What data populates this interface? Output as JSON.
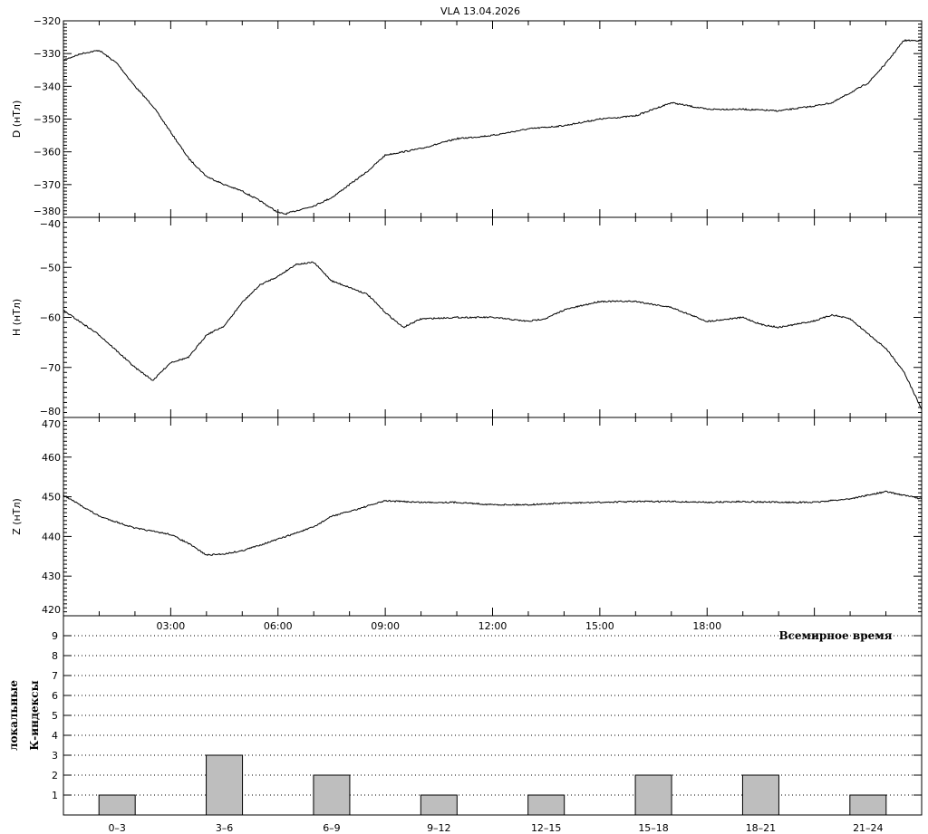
{
  "title": "VLA   13.04.2026",
  "chart_data": [
    {
      "type": "line",
      "ylabel": "D (нТл)",
      "ylim": [
        -380,
        -320
      ],
      "yticks": [
        -320,
        -330,
        -340,
        -350,
        -360,
        -370,
        -380
      ],
      "xlim": [
        0,
        24
      ],
      "x": [
        0,
        0.5,
        1,
        1.5,
        2,
        2.5,
        3,
        3.5,
        4,
        4.5,
        5,
        5.5,
        6,
        6.2,
        6.5,
        7,
        7.5,
        8,
        8.5,
        9,
        9.5,
        10,
        11,
        12,
        13,
        14,
        15,
        16,
        17,
        18,
        19,
        20,
        21,
        21.5,
        22,
        22.5,
        23,
        23.5,
        24
      ],
      "y": [
        -332,
        -330,
        -329,
        -333,
        -340,
        -346,
        -354,
        -362,
        -367.5,
        -370,
        -372,
        -375,
        -378.5,
        -379,
        -378,
        -376.5,
        -374,
        -370,
        -366,
        -361,
        -360,
        -359,
        -356,
        -355,
        -353,
        -352,
        -350,
        -349,
        -345,
        -347,
        -347,
        -347.5,
        -346,
        -345,
        -342,
        -339,
        -333,
        -326,
        -326
      ]
    },
    {
      "type": "line",
      "ylabel": "H (нТл)",
      "ylim": [
        -80,
        -40
      ],
      "yticks": [
        -40,
        -50,
        -60,
        -70,
        -80
      ],
      "xlim": [
        0,
        24
      ],
      "x": [
        0,
        1,
        2,
        2.5,
        3,
        3.5,
        4,
        4.5,
        5,
        5.5,
        6,
        6.5,
        7,
        7.5,
        8,
        8.5,
        9,
        9.5,
        10,
        11,
        12,
        12.5,
        13,
        13.5,
        14,
        15,
        16,
        17,
        18,
        19,
        19.5,
        20,
        21,
        21.5,
        22,
        23,
        23.5,
        24
      ],
      "y": [
        -58.6,
        -63.5,
        -70,
        -72.6,
        -69,
        -68,
        -63.5,
        -61.7,
        -57,
        -53.5,
        -51.8,
        -49.4,
        -49,
        -52.7,
        -54,
        -55.4,
        -59,
        -62,
        -60.3,
        -60,
        -60,
        -60.4,
        -60.8,
        -60.2,
        -58.5,
        -56.8,
        -56.8,
        -58,
        -60.8,
        -60,
        -61.4,
        -62,
        -60.7,
        -59.5,
        -60.3,
        -66.2,
        -70.8,
        -78.4
      ]
    },
    {
      "type": "line",
      "ylabel": "Z (нТл)",
      "ylim": [
        420,
        470
      ],
      "yticks": [
        470,
        460,
        450,
        440,
        430,
        420
      ],
      "xlim": [
        0,
        24
      ],
      "x": [
        0,
        1,
        2,
        3,
        3.5,
        4,
        4.5,
        5,
        6,
        7,
        7.5,
        8,
        9,
        10,
        11,
        12,
        13,
        14,
        15,
        16,
        17,
        18,
        19,
        20,
        21,
        22,
        23,
        24
      ],
      "y": [
        450.4,
        445.1,
        442.1,
        440.5,
        438.2,
        435.3,
        435.6,
        436.4,
        439.3,
        442.4,
        445.1,
        446.3,
        449,
        448.6,
        448.6,
        448,
        448,
        448.4,
        448.6,
        448.8,
        448.8,
        448.6,
        448.8,
        448.6,
        448.6,
        449.5,
        451.3,
        449.5
      ]
    },
    {
      "type": "bar",
      "ylabel": [
        "локальные",
        "К-индексы"
      ],
      "xlabel": "Всемирное время",
      "time_ticks": [
        "03:00",
        "06:00",
        "09:00",
        "12:00",
        "15:00",
        "18:00"
      ],
      "categories": [
        "0–3",
        "3–6",
        "6–9",
        "9–12",
        "12–15",
        "15–18",
        "18–21",
        "21–24"
      ],
      "values": [
        1,
        3,
        2,
        1,
        1,
        2,
        2,
        1
      ],
      "ylim": [
        0,
        10
      ],
      "yticks": [
        1,
        2,
        3,
        4,
        5,
        6,
        7,
        8,
        9
      ],
      "grid": "dotted horizontal",
      "bar_color": "#bebebe"
    }
  ]
}
